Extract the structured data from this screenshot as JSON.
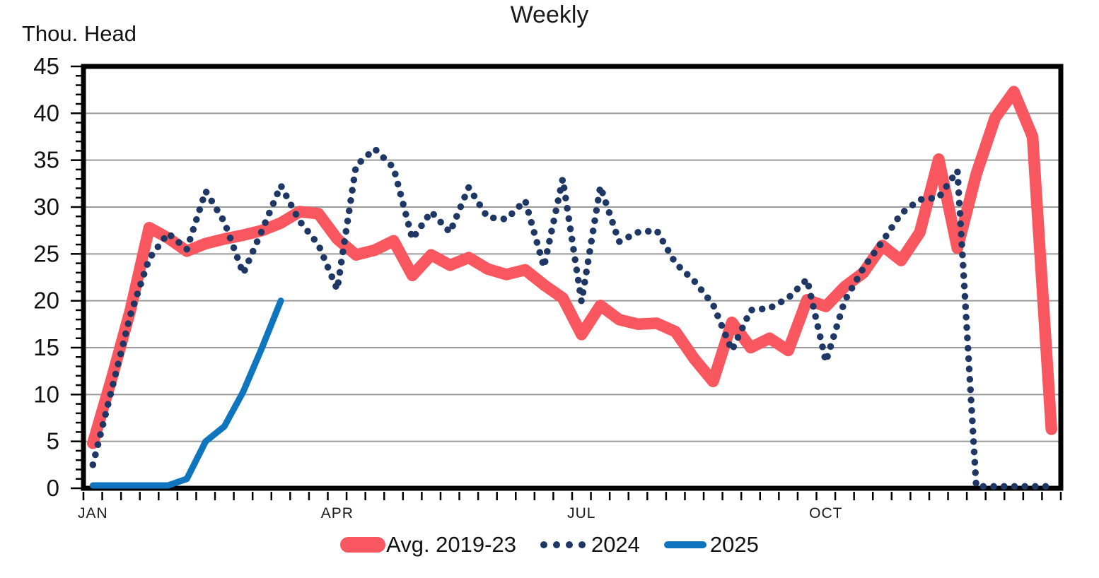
{
  "chart_data": {
    "type": "line",
    "title": "Weekly",
    "ylabel": "Thou. Head",
    "xlabel": "",
    "x_unit": "week-of-year",
    "weeks": 52,
    "ylim": [
      0,
      45
    ],
    "y_tick_step": 5,
    "y_minor_tick_step": 1,
    "y_tick_labels": [
      "0",
      "5",
      "10",
      "15",
      "20",
      "25",
      "30",
      "35",
      "40",
      "45"
    ],
    "month_ticks": [
      {
        "label": "JAN",
        "week": 1
      },
      {
        "label": "APR",
        "week": 14
      },
      {
        "label": "JUL",
        "week": 27
      },
      {
        "label": "OCT",
        "week": 40
      }
    ],
    "grid": "horizontal-major",
    "grid_color": "#9A9A9A",
    "axis_color": "#000000",
    "legend_position": "bottom-center",
    "series": [
      {
        "name": "Avg. 2019-23",
        "color": "#F9575F",
        "style": "solid-thick",
        "values": [
          4.8,
          11.7,
          19.0,
          27.8,
          26.7,
          25.3,
          26.1,
          26.6,
          27.0,
          27.5,
          28.3,
          29.5,
          29.3,
          26.6,
          24.9,
          25.4,
          26.4,
          22.7,
          24.9,
          23.8,
          24.6,
          23.4,
          22.8,
          23.3,
          21.7,
          20.3,
          16.4,
          19.5,
          18.0,
          17.5,
          17.6,
          16.7,
          13.8,
          11.4,
          17.7,
          15.0,
          16.0,
          14.7,
          20.1,
          19.4,
          21.5,
          23.0,
          25.9,
          24.3,
          27.3,
          35.1,
          25.6,
          33.5,
          39.5,
          42.3,
          37.5,
          6.3
        ]
      },
      {
        "name": "2024",
        "color": "#1E3765",
        "style": "dotted",
        "values": [
          2.5,
          10.5,
          18.5,
          24.5,
          27.2,
          25.5,
          31.7,
          28.4,
          22.9,
          27.5,
          32.3,
          28.5,
          26.0,
          21.2,
          34.4,
          36.2,
          34.2,
          26.6,
          29.5,
          27.3,
          32.1,
          28.9,
          28.7,
          30.7,
          23.6,
          33.0,
          19.9,
          32.2,
          26.3,
          27.3,
          27.5,
          24.0,
          22.1,
          19.6,
          14.7,
          19.0,
          19.2,
          20.3,
          22.3,
          13.5,
          20.0,
          23.5,
          26.3,
          29.3,
          30.8,
          31.0,
          33.9,
          0.2,
          0.2,
          0.2,
          0.2,
          0.2
        ]
      },
      {
        "name": "2025",
        "color": "#0E75BE",
        "style": "solid",
        "values": [
          0.3,
          0.3,
          0.3,
          0.3,
          0.3,
          1.0,
          5.0,
          6.6,
          10.3,
          15.0,
          20.0
        ]
      }
    ]
  }
}
